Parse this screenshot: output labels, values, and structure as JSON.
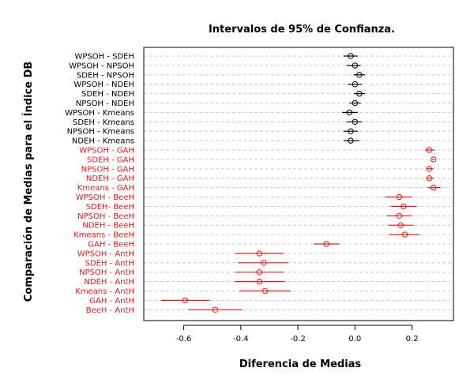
{
  "chart_data": {
    "type": "scatter",
    "title": "Intervalos de 95% de Confianza.",
    "xlabel": "Diferencia de Medias",
    "ylabel": "Comparación de Medias para el Índice DB",
    "xlim": [
      -0.74,
      0.345
    ],
    "xticks": [
      -0.6,
      -0.4,
      -0.2,
      0.0,
      0.2
    ],
    "xtick_labels": [
      "-0.6",
      "-0.4",
      "-0.2",
      "0.0",
      "0.2"
    ],
    "grid": "horizontal-dashed",
    "colors": {
      "not_significant": "#000000",
      "significant": "#e31a1c",
      "grid": "#bdbdbd"
    },
    "comparisons": [
      {
        "label": "WPSOH - SDEH",
        "estimate": -0.015,
        "lower": -0.04,
        "upper": 0.01,
        "significant": false
      },
      {
        "label": "WPSOH - NPSOH",
        "estimate": 0.0,
        "lower": -0.03,
        "upper": 0.02,
        "significant": false
      },
      {
        "label": "SDEH - NPSOH",
        "estimate": 0.015,
        "lower": -0.005,
        "upper": 0.035,
        "significant": false
      },
      {
        "label": "WPSOH - NDEH",
        "estimate": 0.0,
        "lower": -0.025,
        "upper": 0.025,
        "significant": false
      },
      {
        "label": "SDEH - NDEH",
        "estimate": 0.015,
        "lower": -0.005,
        "upper": 0.035,
        "significant": false
      },
      {
        "label": "NPSOH - NDEH",
        "estimate": 0.0,
        "lower": -0.02,
        "upper": 0.02,
        "significant": false
      },
      {
        "label": "WPSOH - Kmeans",
        "estimate": -0.02,
        "lower": -0.045,
        "upper": 0.01,
        "significant": false
      },
      {
        "label": "SDEH - Kmeans",
        "estimate": 0.0,
        "lower": -0.03,
        "upper": 0.025,
        "significant": false
      },
      {
        "label": "NPSOH - Kmeans",
        "estimate": -0.015,
        "lower": -0.04,
        "upper": 0.01,
        "significant": false
      },
      {
        "label": "NDEH - Kmeans",
        "estimate": -0.015,
        "lower": -0.04,
        "upper": 0.015,
        "significant": false
      },
      {
        "label": "WPSOH - GAH",
        "estimate": 0.26,
        "lower": 0.245,
        "upper": 0.28,
        "significant": true
      },
      {
        "label": "SDEH - GAH",
        "estimate": 0.275,
        "lower": 0.27,
        "upper": 0.28,
        "significant": true
      },
      {
        "label": "NPSOH - GAH",
        "estimate": 0.26,
        "lower": 0.25,
        "upper": 0.275,
        "significant": true
      },
      {
        "label": "NDEH - GAH",
        "estimate": 0.26,
        "lower": 0.252,
        "upper": 0.275,
        "significant": true
      },
      {
        "label": "Kmeans - GAH",
        "estimate": 0.275,
        "lower": 0.255,
        "upper": 0.3,
        "significant": true
      },
      {
        "label": "WPSOH - BeeH",
        "estimate": 0.155,
        "lower": 0.105,
        "upper": 0.2,
        "significant": true
      },
      {
        "label": "SDEH- BeeH",
        "estimate": 0.17,
        "lower": 0.125,
        "upper": 0.215,
        "significant": true
      },
      {
        "label": "NPSOH - BeeH",
        "estimate": 0.155,
        "lower": 0.11,
        "upper": 0.2,
        "significant": true
      },
      {
        "label": "NDEH - BeeH",
        "estimate": 0.16,
        "lower": 0.115,
        "upper": 0.205,
        "significant": true
      },
      {
        "label": "Kmeans - BeeH",
        "estimate": 0.175,
        "lower": 0.12,
        "upper": 0.225,
        "significant": true
      },
      {
        "label": "GAH - BeeH",
        "estimate": -0.1,
        "lower": -0.145,
        "upper": -0.055,
        "significant": true
      },
      {
        "label": "WPSOH - AntH",
        "estimate": -0.335,
        "lower": -0.42,
        "upper": -0.25,
        "significant": true
      },
      {
        "label": "SDEH - AntH",
        "estimate": -0.32,
        "lower": -0.41,
        "upper": -0.235,
        "significant": true
      },
      {
        "label": "NPSOH - AntH",
        "estimate": -0.335,
        "lower": -0.42,
        "upper": -0.25,
        "significant": true
      },
      {
        "label": "NDEH - AntH",
        "estimate": -0.335,
        "lower": -0.42,
        "upper": -0.245,
        "significant": true
      },
      {
        "label": "Kmeans - AntH",
        "estimate": -0.315,
        "lower": -0.405,
        "upper": -0.225,
        "significant": true
      },
      {
        "label": "GAH - AntH",
        "estimate": -0.595,
        "lower": -0.68,
        "upper": -0.51,
        "significant": true
      },
      {
        "label": "BeeH - AntH",
        "estimate": -0.49,
        "lower": -0.585,
        "upper": -0.395,
        "significant": true
      }
    ]
  }
}
